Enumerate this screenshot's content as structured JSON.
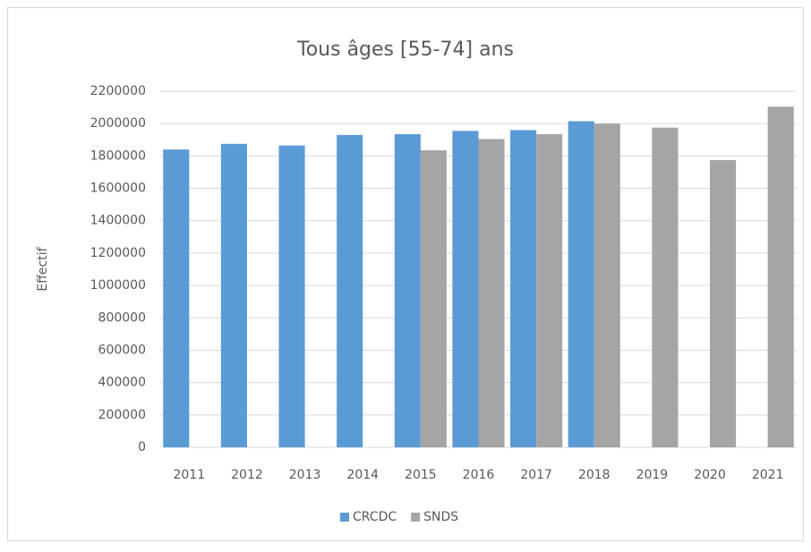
{
  "chart_data": {
    "type": "bar",
    "title": "Tous âges [55-74] ans",
    "y_label": "Effectif",
    "categories": [
      "2011",
      "2012",
      "2013",
      "2014",
      "2015",
      "2016",
      "2017",
      "2018",
      "2019",
      "2020",
      "2021"
    ],
    "series": [
      {
        "name": "CRCDC",
        "color": "#5b9bd5",
        "values": [
          1840000,
          1875000,
          1865000,
          1930000,
          1935000,
          1955000,
          1960000,
          2015000,
          null,
          null,
          null
        ]
      },
      {
        "name": "SNDS",
        "color": "#a5a5a5",
        "values": [
          null,
          null,
          null,
          null,
          1835000,
          1905000,
          1935000,
          2000000,
          1975000,
          1775000,
          2105000
        ]
      }
    ],
    "ylim": [
      0,
      2200000
    ],
    "yticks": [
      0,
      200000,
      400000,
      600000,
      800000,
      1000000,
      1200000,
      1400000,
      1600000,
      1800000,
      2000000,
      2200000
    ],
    "grid": true,
    "legend": "bottom"
  }
}
